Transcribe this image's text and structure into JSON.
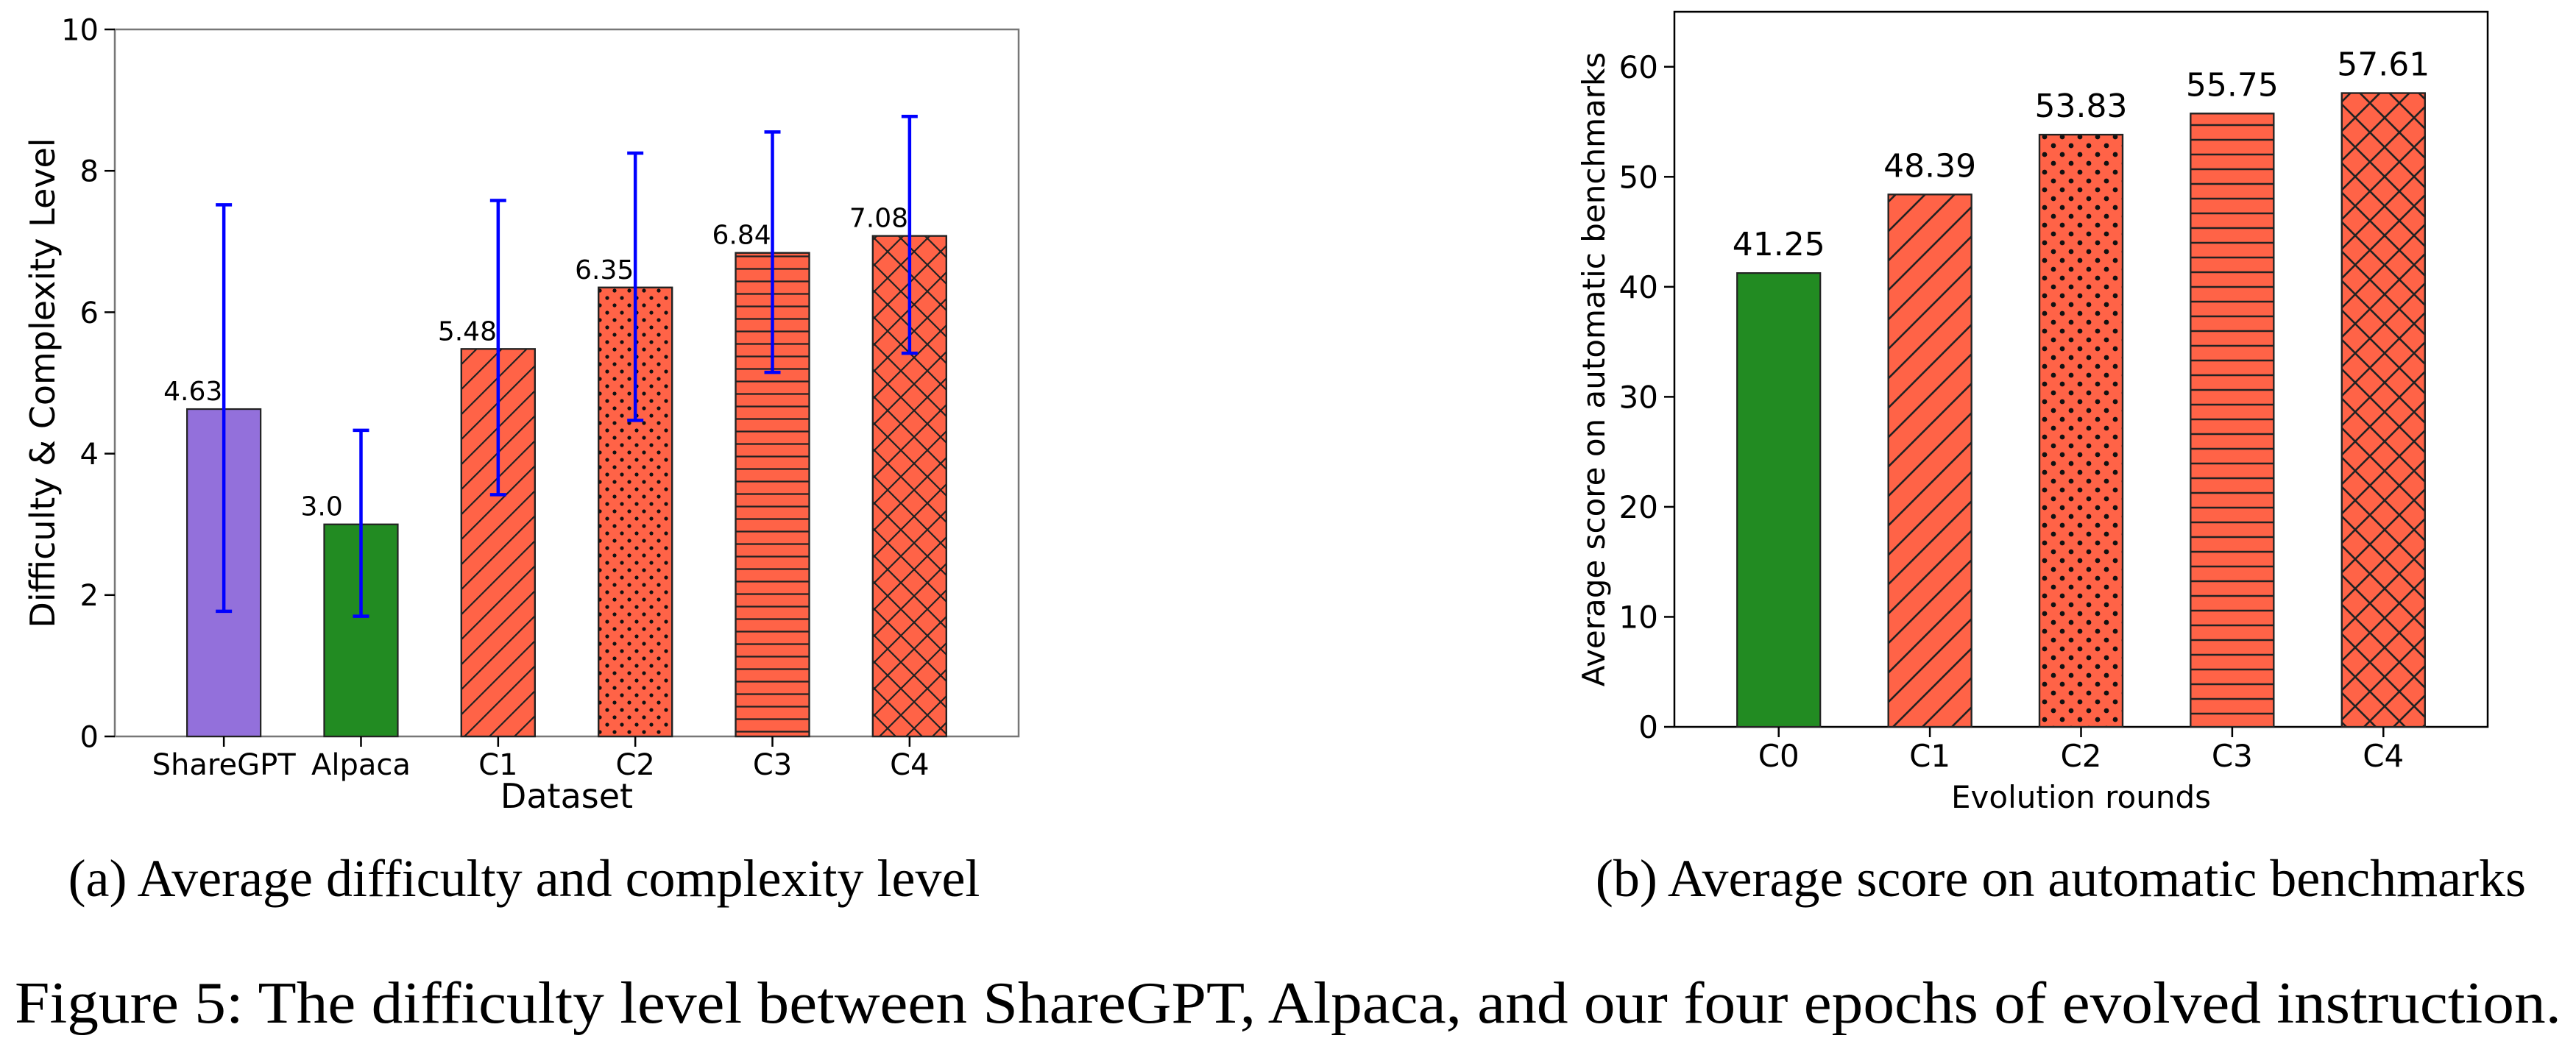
{
  "figure_caption": "Figure 5: The difficulty level between ShareGPT, Alpaca, and our four epochs of evolved instruction.",
  "colors": {
    "sharegpt": "#9370DB",
    "alpaca": "#228B22",
    "evolved": "#FF6347",
    "errorbar": "#0000FF",
    "axis": "#000000"
  },
  "chart_data": [
    {
      "type": "bar",
      "caption": "(a) Average difficulty and complexity level",
      "title": "",
      "xlabel": "Dataset",
      "ylabel": "Difficulty & Complexity Level",
      "ylim": [
        0,
        10
      ],
      "yticks": [
        "0",
        "2",
        "4",
        "6",
        "8",
        "10"
      ],
      "ytick_values": [
        0,
        2,
        4,
        6,
        8,
        10
      ],
      "categories": [
        "ShareGPT",
        "Alpaca",
        "C1",
        "C2",
        "C3",
        "C4"
      ],
      "values": [
        4.63,
        3.0,
        5.48,
        6.35,
        6.84,
        7.08
      ],
      "value_labels": [
        "4.63",
        "3.0",
        "5.48",
        "6.35",
        "6.84",
        "7.08"
      ],
      "error_low": [
        1.77,
        1.7,
        3.42,
        4.47,
        5.15,
        5.42
      ],
      "error_high": [
        7.52,
        4.33,
        7.58,
        8.25,
        8.55,
        8.77
      ],
      "colors": [
        "#9370DB",
        "#228B22",
        "#FF6347",
        "#FF6347",
        "#FF6347",
        "#FF6347"
      ],
      "hatches": [
        "none",
        "none",
        "diag",
        "dots",
        "horiz",
        "cross"
      ],
      "grid": false
    },
    {
      "type": "bar",
      "caption": "(b) Average score on automatic benchmarks",
      "title": "",
      "xlabel": "Evolution rounds",
      "ylabel": "Average score on automatic benchmarks",
      "ylim": [
        0,
        65
      ],
      "yticks": [
        "0",
        "10",
        "20",
        "30",
        "40",
        "50",
        "60"
      ],
      "ytick_values": [
        0,
        10,
        20,
        30,
        40,
        50,
        60
      ],
      "categories": [
        "C0",
        "C1",
        "C2",
        "C3",
        "C4"
      ],
      "values": [
        41.25,
        48.39,
        53.83,
        55.75,
        57.61
      ],
      "value_labels": [
        "41.25",
        "48.39",
        "53.83",
        "55.75",
        "57.61"
      ],
      "colors": [
        "#228B22",
        "#FF6347",
        "#FF6347",
        "#FF6347",
        "#FF6347"
      ],
      "hatches": [
        "none",
        "diag",
        "dots",
        "horiz",
        "cross"
      ],
      "grid": false
    }
  ]
}
